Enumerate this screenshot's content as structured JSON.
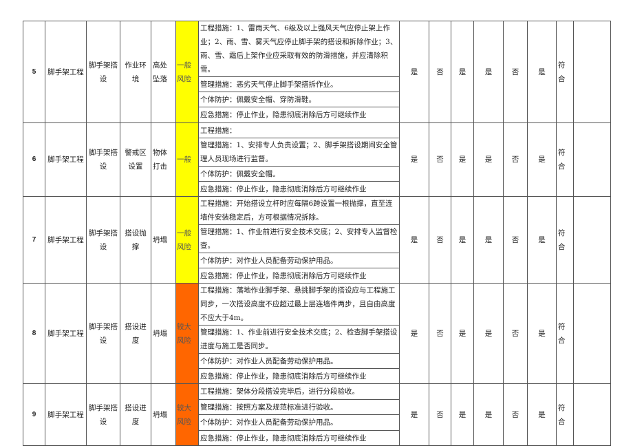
{
  "colors": {
    "general_risk": "#ffff00",
    "major_risk": "#ff6600"
  },
  "rows": [
    {
      "no": "5",
      "project": "脚手架工程",
      "activity": "脚手架搭设",
      "factor": "作业环境",
      "hazard": "高处坠落",
      "risk": "一般风险",
      "risk_level": "general",
      "measures": [
        "工程措施：1、雷雨天气、6级及以上强风天气应停止架上作业；2、雨、雪、雾天气应停止脚手架的搭设和拆除作业；3、雨、雪、霜后上架作业应采取有效的防滑措施，并应清除积雪。",
        "管理措施：恶劣天气停止脚手架搭拆作业。",
        "个体防护：佩戴安全帽、穿防滑鞋。",
        "应急措施：停止作业，隐患彻底消除后方可继续作业"
      ],
      "checks": [
        "是",
        "否",
        "是",
        "是",
        "否",
        "是"
      ],
      "result": "符合"
    },
    {
      "no": "6",
      "project": "脚手架工程",
      "activity": "脚手架搭设",
      "factor": "警戒区设置",
      "hazard": "物体打击",
      "risk": "一般",
      "risk_level": "general",
      "measures": [
        "工程措施：",
        "管理措施：1、安排专人负责设置；2、脚手架搭设期间安全管理人员现场进行监督。",
        "个体防护：佩戴安全帽。",
        "应急措施：停止作业，隐患彻底消除后方可继续作业"
      ],
      "checks": [
        "是",
        "否",
        "是",
        "是",
        "否",
        "是"
      ],
      "result": "符合"
    },
    {
      "no": "7",
      "project": "脚手架工程",
      "activity": "脚手架搭设",
      "factor": "搭设抛撑",
      "hazard": "坍塌",
      "risk": "一般风险",
      "risk_level": "general",
      "measures": [
        "工程措施：开始搭设立杆时应每隔6跨设置一根抛撑，直至连墙件安装稳定后，方可根据情况拆除。",
        "管理措施：1、作业前进行安全技术交底；2、安排专人监督检查。",
        "个体防护：对作业人员配备劳动保护用品。",
        "应急措施：停止作业，隐患彻底消除后方可继续作业"
      ],
      "checks": [
        "是",
        "否",
        "是",
        "是",
        "否",
        "是"
      ],
      "result": "符合"
    },
    {
      "no": "8",
      "project": "脚手架工程",
      "activity": "脚手架搭设",
      "factor": "搭设进度",
      "hazard": "坍塌",
      "risk": "较大风险",
      "risk_level": "major",
      "measures": [
        "工程措施：落地作业脚手架、悬挑脚手架的搭设应与工程施工同步，一次搭设高度不应超过最上层连墙件两步，且自由高度不应大于4m。",
        "管理措施：1、作业前进行安全技术交底；2、检查脚手架搭设进度与施工是否同步。",
        "个体防护：对作业人员配备劳动保护用品。",
        "应急措施：停止作业，隐患彻底消除后方可继续作业"
      ],
      "checks": [
        "是",
        "否",
        "是",
        "是",
        "否",
        "是"
      ],
      "result": "符合"
    },
    {
      "no": "9",
      "project": "脚手架工程",
      "activity": "脚手架搭设",
      "factor": "搭设进度",
      "hazard": "坍塌",
      "risk": "较大风险",
      "risk_level": "major",
      "measures": [
        "工程措施：架体分段搭设完毕后，进行分段验收。",
        "管理措施：按照方案及规范标准进行验收。",
        "个体防护：对作业人员配备劳动保护用品。",
        "应急措施：停止作业，隐患彻底消除后方可继续作业"
      ],
      "checks": [
        "是",
        "否",
        "是",
        "是",
        "否",
        "是"
      ],
      "result": "符合"
    }
  ]
}
